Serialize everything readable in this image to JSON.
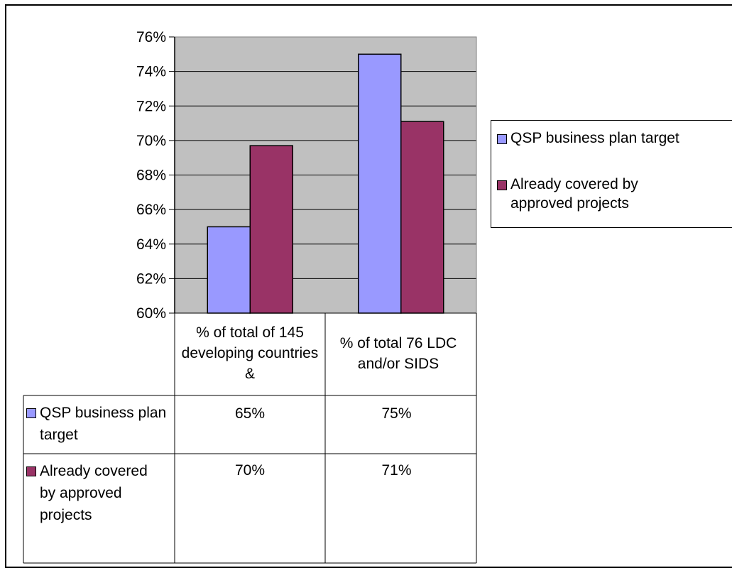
{
  "chart_data": {
    "type": "bar",
    "categories": [
      "% of total of 145 developing countries &",
      "% of total 76 LDC and/or SIDS"
    ],
    "series": [
      {
        "name": "QSP business plan target",
        "values": [
          65,
          75
        ],
        "labels": [
          "65%",
          "75%"
        ],
        "color": "#9999ff"
      },
      {
        "name": "Already covered by approved projects",
        "values": [
          69.7,
          71.1
        ],
        "labels": [
          "70%",
          "71%"
        ],
        "color": "#993366"
      }
    ],
    "ylim": [
      60,
      76
    ],
    "yticks": [
      60,
      62,
      64,
      66,
      68,
      70,
      72,
      74,
      76
    ],
    "ytick_labels": [
      "60%",
      "62%",
      "64%",
      "66%",
      "68%",
      "70%",
      "72%",
      "74%",
      "76%"
    ],
    "grid": true,
    "plot_bg": "#c0c0c0",
    "legend_position": "right",
    "data_table": true
  }
}
